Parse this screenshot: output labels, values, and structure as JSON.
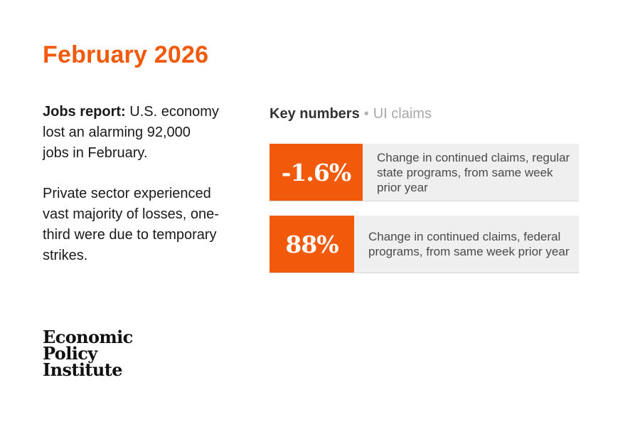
{
  "title": "February 2026",
  "left": {
    "lead": "Jobs report:",
    "lead_text": " U.S. economy lost an alarming 92,000 jobs in February.",
    "paragraph2": "Private sector experienced vast majority of losses, one-third were due to temporary strikes."
  },
  "logo": {
    "line1": "Economic",
    "line2": "Policy",
    "line3": "Institute"
  },
  "key_numbers": {
    "label": "Key numbers",
    "separator": "•",
    "sublabel": "UI claims",
    "cards": [
      {
        "value": "-1.6%",
        "description": "Change in continued claims, regular state programs, from same week prior year"
      },
      {
        "value": "88%",
        "description": "Change in continued claims, federal programs, from same week prior year"
      }
    ]
  },
  "colors": {
    "accent": "#f15a0b",
    "card_background": "#efefef"
  }
}
